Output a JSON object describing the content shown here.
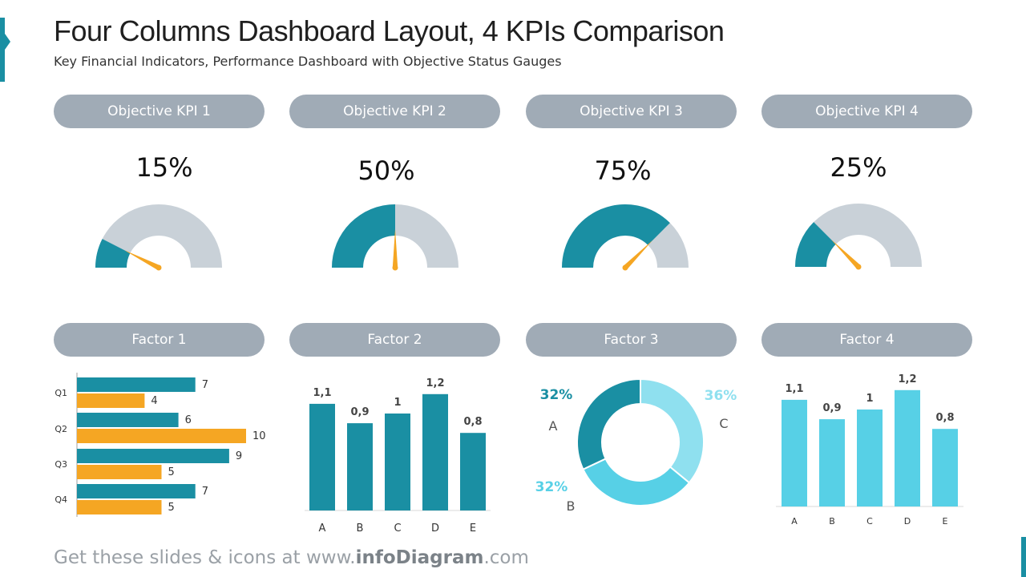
{
  "header": {
    "title": "Four Columns Dashboard Layout, 4 KPIs Comparison",
    "subtitle": "Key Financial Indicators, Performance Dashboard with Objective Status Gauges"
  },
  "footer": {
    "prefix": "Get these slides & icons at www.",
    "brand": "infoDiagram",
    "suffix": ".com"
  },
  "colors": {
    "teal": "#1a8fa3",
    "orange": "#f5a623",
    "gray_track": "#c9d1d8",
    "light_blue": "#57d0e6",
    "pale_blue": "#8fe0ef",
    "pill": "#a0abb6"
  },
  "objectives": [
    {
      "label": "Objective KPI 1",
      "value_label": "15%"
    },
    {
      "label": "Objective KPI 2",
      "value_label": "50%"
    },
    {
      "label": "Objective KPI 3",
      "value_label": "75%"
    },
    {
      "label": "Objective KPI 4",
      "value_label": "25%"
    }
  ],
  "factors": [
    {
      "label": "Factor 1"
    },
    {
      "label": "Factor 2"
    },
    {
      "label": "Factor 3"
    },
    {
      "label": "Factor 4"
    }
  ],
  "chart_data": [
    {
      "type": "gauge",
      "value": 15,
      "unit": "%"
    },
    {
      "type": "gauge",
      "value": 50,
      "unit": "%"
    },
    {
      "type": "gauge",
      "value": 75,
      "unit": "%"
    },
    {
      "type": "gauge",
      "value": 25,
      "unit": "%"
    },
    {
      "type": "bar",
      "orientation": "horizontal",
      "categories": [
        "Q1",
        "Q2",
        "Q3",
        "Q4"
      ],
      "series": [
        {
          "values": [
            7,
            6,
            9,
            7
          ],
          "color": "#1a8fa3"
        },
        {
          "values": [
            4,
            10,
            5,
            5
          ],
          "color": "#f5a623"
        }
      ],
      "xlim": [
        0,
        10
      ]
    },
    {
      "type": "bar",
      "categories": [
        "A",
        "B",
        "C",
        "D",
        "E"
      ],
      "values": [
        1.1,
        0.9,
        1.0,
        1.2,
        0.8
      ],
      "value_labels": [
        "1,1",
        "0,9",
        "1",
        "1,2",
        "0,8"
      ],
      "color": "#1a8fa3"
    },
    {
      "type": "pie",
      "style": "donut",
      "slices": [
        {
          "label": "A",
          "value": 32,
          "value_label": "32%",
          "color": "#1a8fa3"
        },
        {
          "label": "B",
          "value": 32,
          "value_label": "32%",
          "color": "#57d0e6"
        },
        {
          "label": "C",
          "value": 36,
          "value_label": "36%",
          "color": "#8fe0ef"
        }
      ]
    },
    {
      "type": "bar",
      "categories": [
        "A",
        "B",
        "C",
        "D",
        "E"
      ],
      "values": [
        1.1,
        0.9,
        1.0,
        1.2,
        0.8
      ],
      "value_labels": [
        "1,1",
        "0,9",
        "1",
        "1,2",
        "0,8"
      ],
      "color": "#57d0e6"
    }
  ]
}
